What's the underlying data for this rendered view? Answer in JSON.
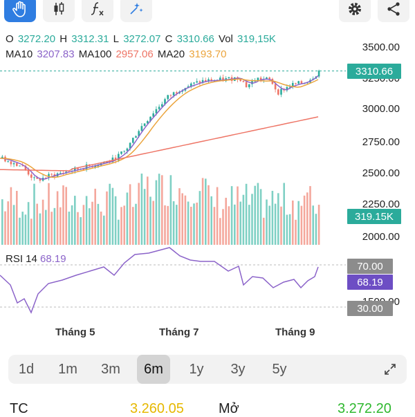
{
  "toolbar": {
    "left_icons": [
      "hand-icon",
      "candles-icon",
      "function-icon",
      "sparkle-icon"
    ],
    "right_icons": [
      "gear-icon",
      "share-icon"
    ]
  },
  "ohlc": {
    "o_label": "O",
    "o_value": "3272.20",
    "h_label": "H",
    "h_value": "3312.31",
    "l_label": "L",
    "l_value": "3272.07",
    "c_label": "C",
    "c_value": "3310.66",
    "vol_label": "Vol",
    "vol_value": "319,15K"
  },
  "ma": {
    "ma10_label": "MA10",
    "ma10_value": "3207.83",
    "ma100_label": "MA100",
    "ma100_value": "2957.06",
    "ma20_label": "MA20",
    "ma20_value": "3193.70"
  },
  "price_axis": [
    "3500.00",
    "3250.00",
    "3000.00",
    "2750.00",
    "2500.00",
    "2250.00",
    "2000.00"
  ],
  "badges": {
    "last_price": "3310.66",
    "volume": "319.15K",
    "rsi_upper": "70.00",
    "rsi_value": "68.19",
    "rsi_lower": "30.00"
  },
  "rsi_axis": "1500.00",
  "rsi": {
    "label": "RSI 14",
    "value": "68.19"
  },
  "months": [
    "Tháng 5",
    "Tháng 7",
    "Tháng 9"
  ],
  "ranges": [
    "1d",
    "1m",
    "3m",
    "6m",
    "1y",
    "3y",
    "5y"
  ],
  "active_range": "6m",
  "summary": {
    "tc_label": "TC",
    "tc_value": "3.260.05",
    "open_label": "Mở",
    "open_value": "3.272.20"
  },
  "colors": {
    "up": "#2bab9b",
    "down": "#ee7566",
    "ma10": "#8b63c9",
    "ma20": "#eba43c",
    "ma100": "#ee7566",
    "active": "#2f7de1"
  },
  "chart_data": {
    "type": "candlestick",
    "price_range": [
      1900,
      3560
    ],
    "ma_levels": {
      "ma10": 3207.83,
      "ma20": 3193.7,
      "ma100": 2957.06
    },
    "last_close": 3310.66,
    "rsi_range": [
      30,
      70
    ],
    "rsi_last": 68.19
  }
}
